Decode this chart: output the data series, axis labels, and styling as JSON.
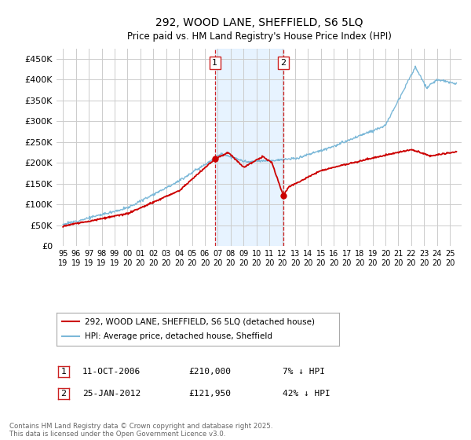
{
  "title": "292, WOOD LANE, SHEFFIELD, S6 5LQ",
  "subtitle": "Price paid vs. HM Land Registry's House Price Index (HPI)",
  "hpi_color": "#7bb8d8",
  "price_color": "#cc0000",
  "marker1_date": "11-OCT-2006",
  "marker1_price": 210000,
  "marker1_price_str": "£210,000",
  "marker1_hpi_pct": "7% ↓ HPI",
  "marker1_label": "1",
  "marker2_date": "25-JAN-2012",
  "marker2_price": 121950,
  "marker2_price_str": "£121,950",
  "marker2_hpi_pct": "42% ↓ HPI",
  "marker2_label": "2",
  "legend_line1": "292, WOOD LANE, SHEFFIELD, S6 5LQ (detached house)",
  "legend_line2": "HPI: Average price, detached house, Sheffield",
  "footer": "Contains HM Land Registry data © Crown copyright and database right 2025.\nThis data is licensed under the Open Government Licence v3.0.",
  "background_color": "#ffffff",
  "grid_color": "#cccccc",
  "shaded_region_color": "#ddeeff",
  "marker1_x_year": 2006.78,
  "marker2_x_year": 2012.07,
  "ylim": [
    0,
    475000
  ],
  "yticks": [
    0,
    50000,
    100000,
    150000,
    200000,
    250000,
    300000,
    350000,
    400000,
    450000
  ],
  "ytick_labels": [
    "£0",
    "£50K",
    "£100K",
    "£150K",
    "£200K",
    "£250K",
    "£300K",
    "£350K",
    "£400K",
    "£450K"
  ],
  "xlim_left": 1994.5,
  "xlim_right": 2025.9,
  "xtick_years": [
    1995,
    1996,
    1997,
    1998,
    1999,
    2000,
    2001,
    2002,
    2003,
    2004,
    2005,
    2006,
    2007,
    2008,
    2009,
    2010,
    2011,
    2012,
    2013,
    2014,
    2015,
    2016,
    2017,
    2018,
    2019,
    2020,
    2021,
    2022,
    2023,
    2024,
    2025
  ]
}
